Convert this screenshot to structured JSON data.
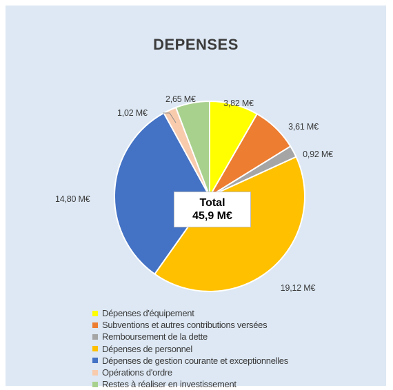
{
  "chart_data": {
    "type": "pie",
    "title": "DEPENSES",
    "center_label": {
      "line1": "Total",
      "line2": "45,9 M€"
    },
    "legend_position": "bottom",
    "slices": [
      {
        "name": "Dépenses d'équipement",
        "value": 3.82,
        "label": "3,82 M€",
        "color": "#ffff00"
      },
      {
        "name": "Subventions et autres contributions versées",
        "value": 3.61,
        "label": "3,61 M€",
        "color": "#ed7d31"
      },
      {
        "name": "Remboursement de la dette",
        "value": 0.92,
        "label": "0,92 M€",
        "color": "#a5a5a5"
      },
      {
        "name": "Dépenses de personnel",
        "value": 19.12,
        "label": "19,12 M€",
        "color": "#ffc000"
      },
      {
        "name": "Dépenses de gestion courante et exceptionnelles",
        "value": 14.8,
        "label": "14,80 M€",
        "color": "#4472c4"
      },
      {
        "name": "Opérations d'ordre",
        "value": 1.02,
        "label": "1,02 M€",
        "color": "#f8cbad"
      },
      {
        "name": "Restes à réaliser en investissement",
        "value": 2.65,
        "label": "2,65 M€",
        "color": "#a9d18e"
      }
    ]
  }
}
